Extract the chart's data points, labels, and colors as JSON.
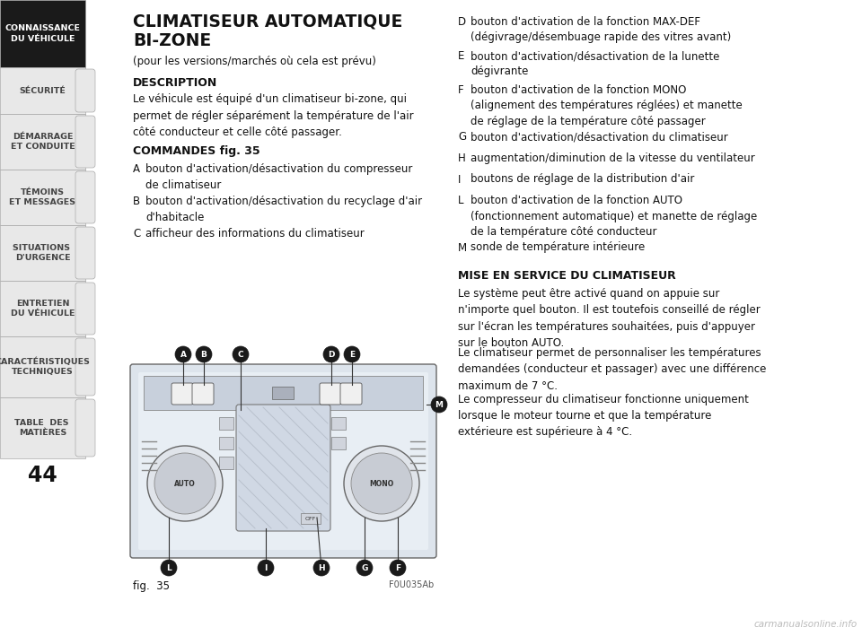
{
  "page_number": "44",
  "bg_color": "#ffffff",
  "sidebar_bg_active": "#1a1a1a",
  "sidebar_bg_inactive": "#e8e8e8",
  "sidebar_text_active": "#ffffff",
  "sidebar_text_inactive": "#444444",
  "sidebar_items": [
    {
      "text": "CONNAISSANCE\nDU VÉHICULE",
      "active": true
    },
    {
      "text": "SÉCURITÉ",
      "active": false
    },
    {
      "text": "DÉMARRAGE\nET CONDUITE",
      "active": false
    },
    {
      "text": "TÉMOINS\nET MESSAGES",
      "active": false
    },
    {
      "text": "SITUATIONS \nD'URGENCE",
      "active": false
    },
    {
      "text": "ENTRETIEN\nDU VÉHICULE",
      "active": false
    },
    {
      "text": "CARACTÉRISTIQUES\nTECHNIQUES",
      "active": false
    },
    {
      "text": "TABLE  DES \nMATIÈRES",
      "active": false
    }
  ],
  "title_line1": "CLIMATISEUR AUTOMATIQUE",
  "title_line2": "BI-ZONE",
  "subtitle": "(pour les versions/marchés où cela est prévu)",
  "section1_title": "DESCRIPTION",
  "section1_text": "Le véhicule est équipé d'un climatiseur bi-zone, qui\npermet de régler séparément la température de l'air\ncôté conducteur et celle côté passager.",
  "section2_title": "COMMANDES fig. 35",
  "items_left": [
    {
      "label": "A",
      "text": "bouton d'activation/désactivation du compresseur\nde climatiseur"
    },
    {
      "label": "B",
      "text": "bouton d'activation/désactivation du recyclage d'air\nd'habitacle"
    },
    {
      "label": "C",
      "text": "afficheur des informations du climatiseur"
    }
  ],
  "items_right": [
    {
      "label": "D",
      "text": "bouton d'activation de la fonction MAX-DEF\n(dégivrage/désembuage rapide des vitres avant)"
    },
    {
      "label": "E",
      "text": "bouton d'activation/désactivation de la lunette\ndégivrante"
    },
    {
      "label": "F",
      "text": "bouton d'activation de la fonction MONO\n(alignement des températures réglées) et manette\nde réglage de la température côté passager"
    },
    {
      "label": "G",
      "text": "bouton d'activation/désactivation du climatiseur"
    },
    {
      "label": "H",
      "text": "augmentation/diminution de la vitesse du ventilateur"
    },
    {
      "label": "I",
      "text": "boutons de réglage de la distribution d'air"
    },
    {
      "label": "L",
      "text": "bouton d'activation de la fonction AUTO\n(fonctionnement automatique) et manette de réglage\nde la température côté conducteur"
    },
    {
      "label": "M",
      "text": "sonde de température intérieure"
    }
  ],
  "section3_title": "MISE EN SERVICE DU CLIMATISEUR",
  "section3_paragraphs": [
    "Le système peut être activé quand on appuie sur\nn'importe quel bouton. Il est toutefois conseillé de régler\nsur l'écran les températures souhaitées, puis d'appuyer\nsur le bouton AUTO.",
    "Le climatiseur permet de personnaliser les températures\ndemandées (conducteur et passager) avec une différence\nmaximum de 7 °C.",
    "Le compresseur du climatiseur fonctionne uniquement\nlorsque le moteur tourne et que la température\nextérieure est supérieure à 4 °C."
  ],
  "fig_label": "fig.  35",
  "fig_code": "F0U035Ab",
  "watermark": "carmanualsonline.info"
}
